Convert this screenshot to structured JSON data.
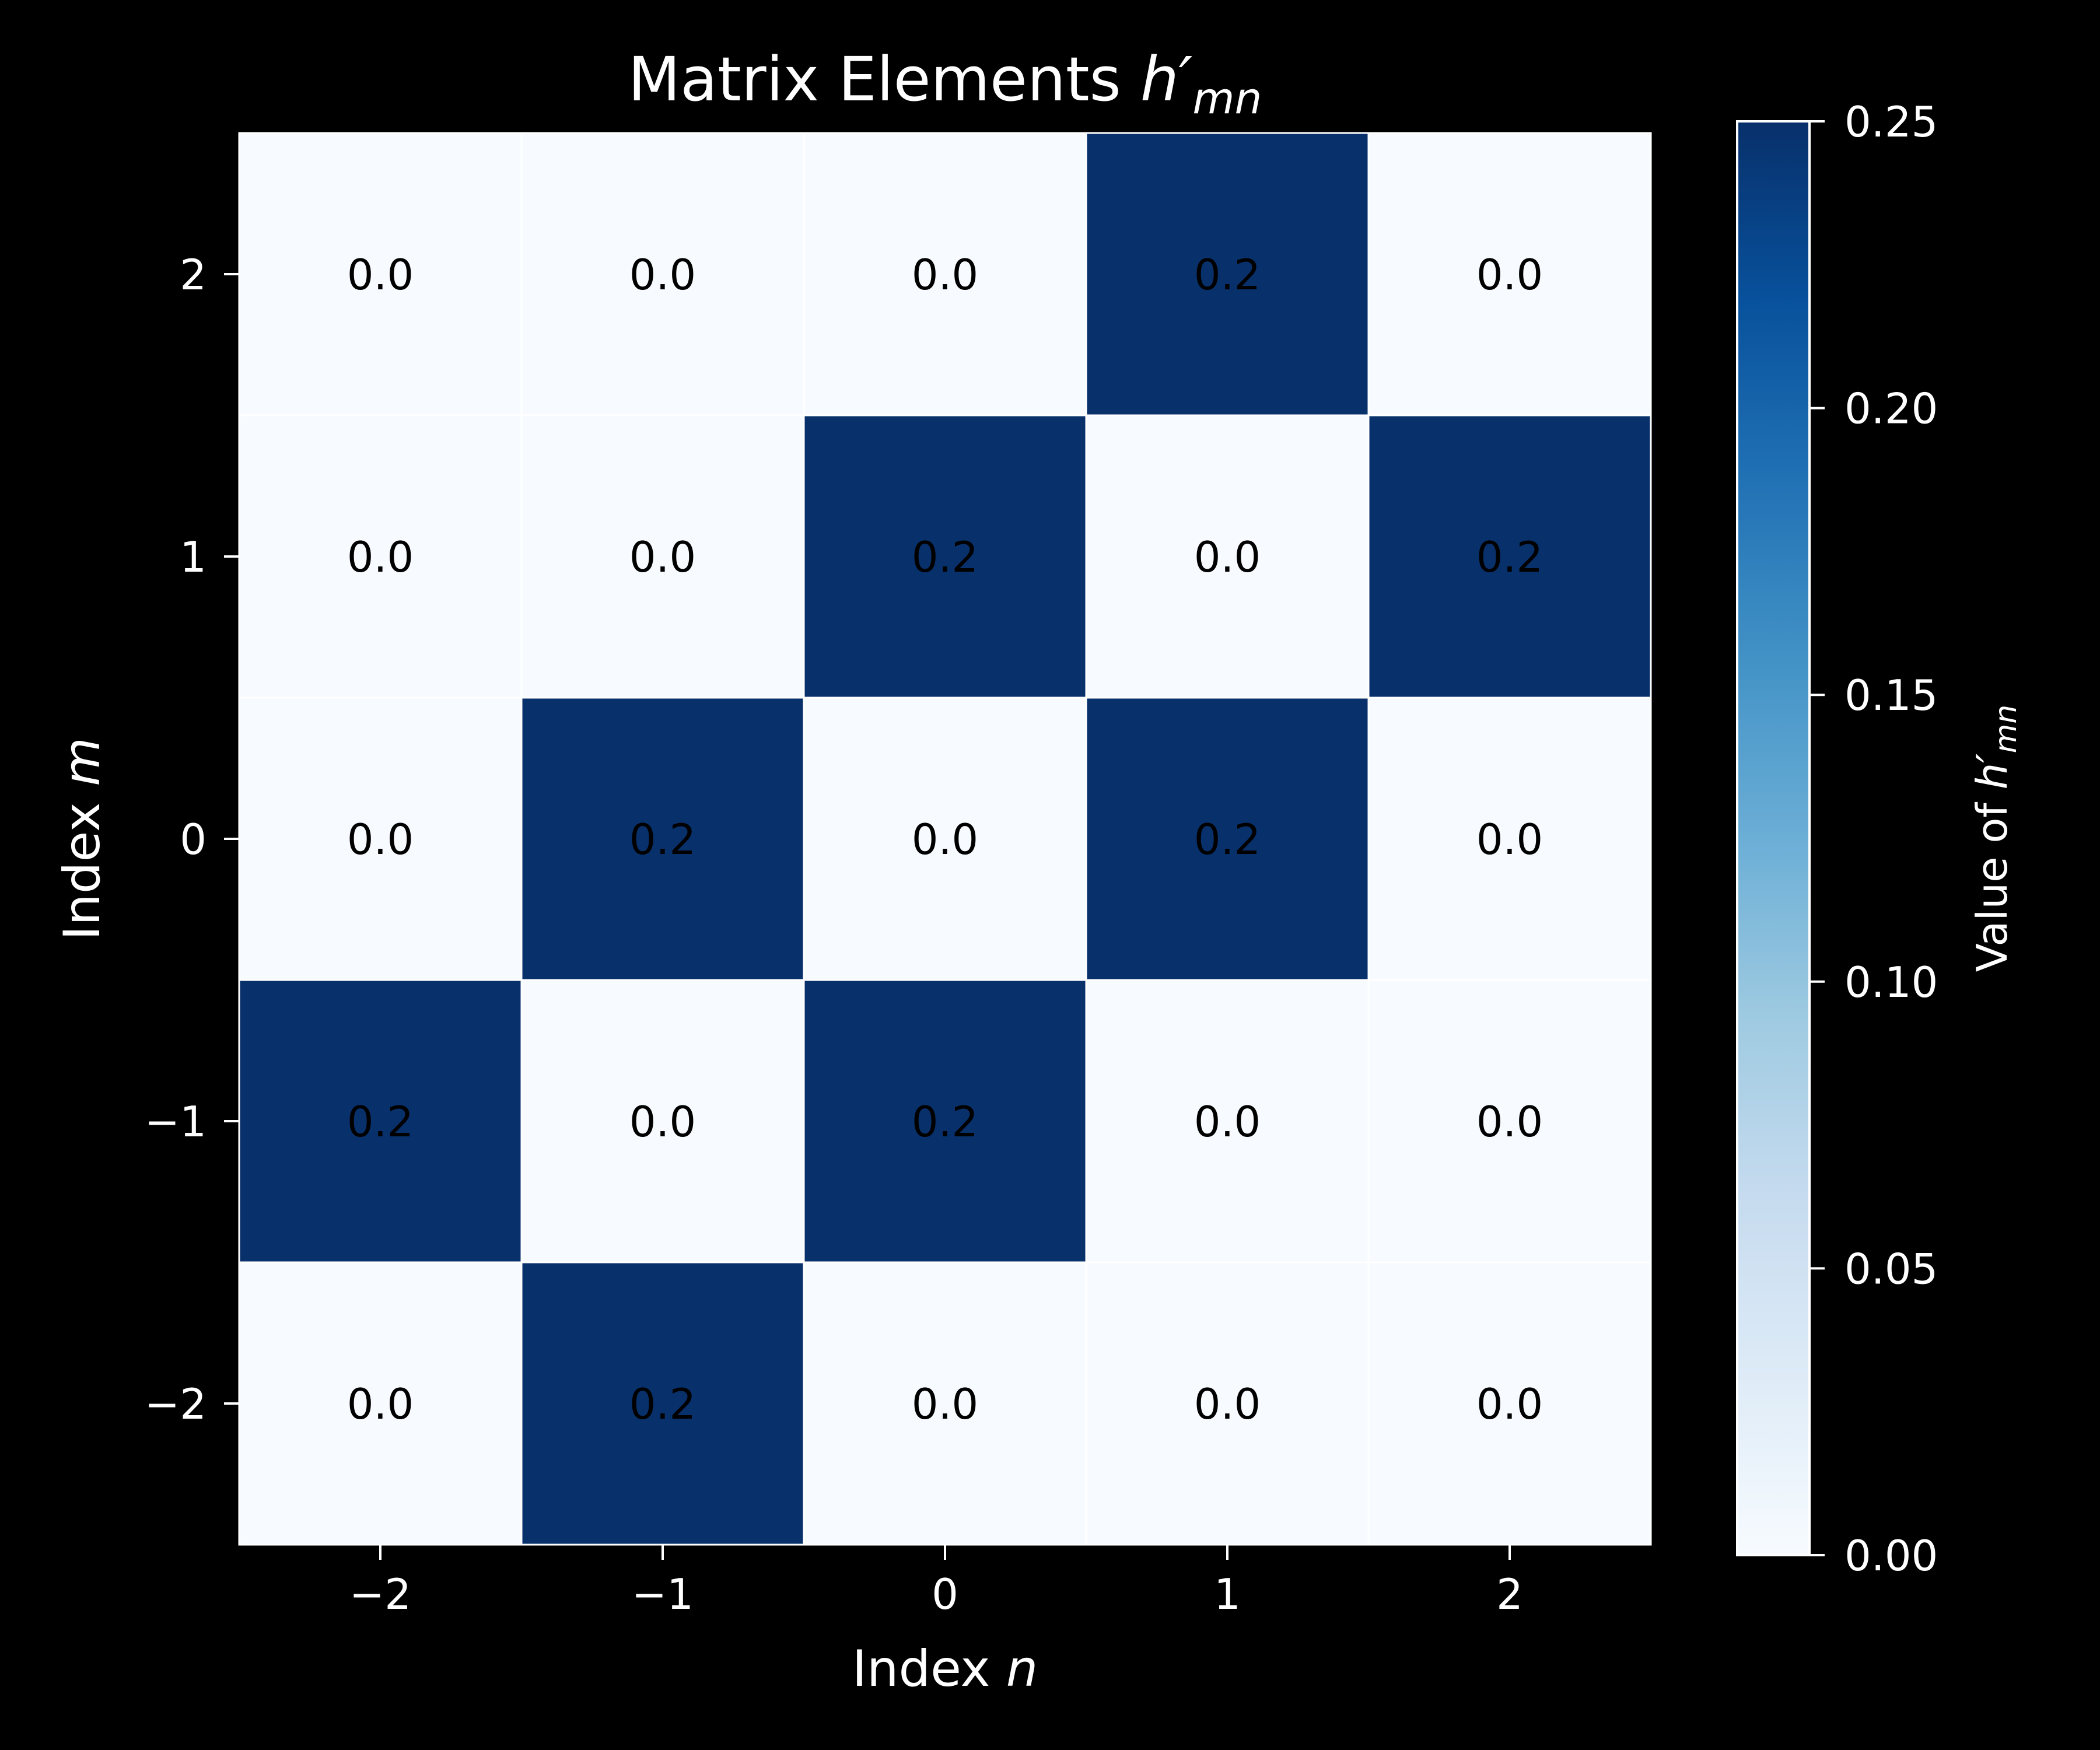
{
  "chart_data": {
    "type": "heatmap",
    "title_main": "Matrix Elements ",
    "title_symbol": "h′",
    "title_subscript": "mn",
    "xlabel_main": "Index ",
    "xlabel_symbol": "n",
    "ylabel_main": "Index ",
    "ylabel_symbol": "m",
    "x_categories": [
      -2,
      -1,
      0,
      1,
      2
    ],
    "x_tick_labels": [
      "−2",
      "−1",
      "0",
      "1",
      "2"
    ],
    "y_categories": [
      2,
      1,
      0,
      -1,
      -2
    ],
    "y_tick_labels": [
      "2",
      "1",
      "0",
      "−1",
      "−2"
    ],
    "values": [
      [
        0.0,
        0.0,
        0.0,
        0.25,
        0.0
      ],
      [
        0.0,
        0.0,
        0.25,
        0.0,
        0.25
      ],
      [
        0.0,
        0.25,
        0.0,
        0.25,
        0.0
      ],
      [
        0.25,
        0.0,
        0.25,
        0.0,
        0.0
      ],
      [
        0.0,
        0.25,
        0.0,
        0.0,
        0.0
      ]
    ],
    "cell_labels": [
      [
        "0.0",
        "0.0",
        "0.0",
        "0.2",
        "0.0"
      ],
      [
        "0.0",
        "0.0",
        "0.2",
        "0.0",
        "0.2"
      ],
      [
        "0.0",
        "0.2",
        "0.0",
        "0.2",
        "0.0"
      ],
      [
        "0.2",
        "0.0",
        "0.2",
        "0.0",
        "0.0"
      ],
      [
        "0.0",
        "0.2",
        "0.0",
        "0.0",
        "0.0"
      ]
    ],
    "colorbar": {
      "label_main": "Value of ",
      "label_symbol": "h′",
      "label_subscript": "mn",
      "vmin": 0.0,
      "vmax": 0.25,
      "ticks": [
        0.0,
        0.05,
        0.1,
        0.15,
        0.2,
        0.25
      ],
      "tick_labels": [
        "0.00",
        "0.05",
        "0.10",
        "0.15",
        "0.20",
        "0.25"
      ]
    },
    "colormap": "Blues",
    "colors": {
      "background": "#000000",
      "text": "#ffffff",
      "cell_text": "#000000",
      "low": "#f7fbff",
      "high": "#08306b"
    }
  }
}
